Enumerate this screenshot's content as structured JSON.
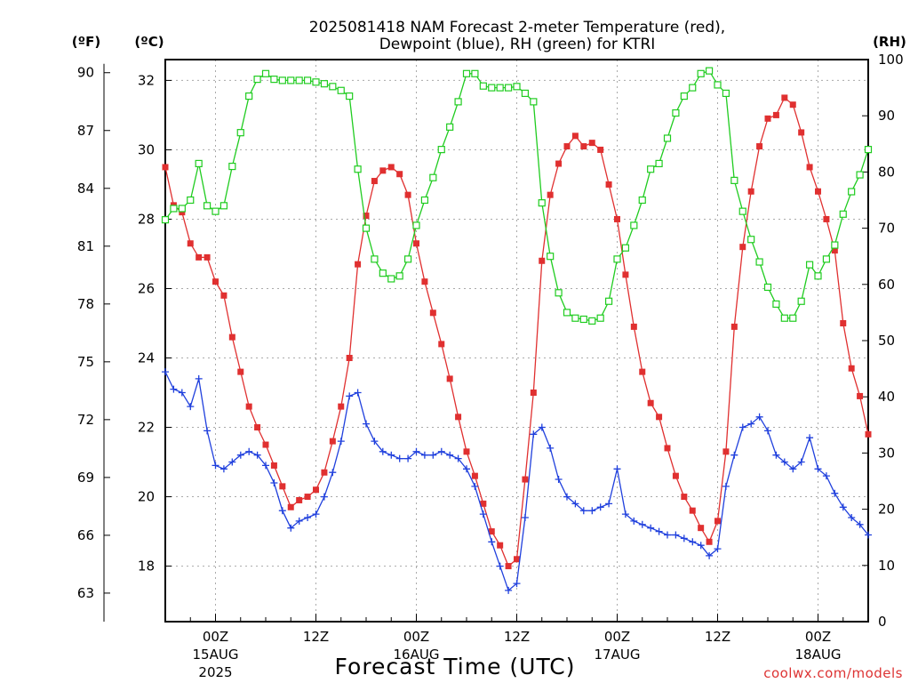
{
  "chart_data": {
    "type": "line",
    "title_line1": "2025081418 NAM Forecast 2-meter Temperature (red),",
    "title_line2": "Dewpoint (blue), RH (green) for KTRI",
    "xlabel": "Forecast Time (UTC)",
    "credit": "coolwx.com/models",
    "x_unit": "forecast hour",
    "x_range": [
      0,
      84
    ],
    "x_ticks": [
      {
        "x": 6,
        "label": "00Z",
        "sub1": "15AUG",
        "sub2": "2025"
      },
      {
        "x": 18,
        "label": "12Z",
        "sub1": "",
        "sub2": ""
      },
      {
        "x": 30,
        "label": "00Z",
        "sub1": "16AUG",
        "sub2": ""
      },
      {
        "x": 42,
        "label": "12Z",
        "sub1": "",
        "sub2": ""
      },
      {
        "x": 54,
        "label": "00Z",
        "sub1": "17AUG",
        "sub2": ""
      },
      {
        "x": 66,
        "label": "12Z",
        "sub1": "",
        "sub2": ""
      },
      {
        "x": 78,
        "label": "00Z",
        "sub1": "18AUG",
        "sub2": ""
      }
    ],
    "axes": {
      "celsius": {
        "label": "(ºC)",
        "range": [
          16.4,
          32.6
        ],
        "ticks": [
          "18",
          "20",
          "22",
          "24",
          "26",
          "28",
          "30",
          "32"
        ]
      },
      "fahrenheit": {
        "label": "(ºF)",
        "ticks": [
          "63",
          "66",
          "69",
          "72",
          "75",
          "78",
          "81",
          "84",
          "87",
          "90"
        ]
      },
      "rh": {
        "label": "(RH)",
        "range": [
          0,
          100
        ],
        "ticks": [
          "0",
          "10",
          "20",
          "30",
          "40",
          "50",
          "60",
          "70",
          "80",
          "90",
          "100"
        ]
      }
    },
    "grid": true,
    "series": [
      {
        "name": "Temperature (red)",
        "color": "#e03030",
        "marker": "filled-square",
        "axis": "celsius",
        "values": [
          29.5,
          28.4,
          28.2,
          27.3,
          26.9,
          26.9,
          26.2,
          25.8,
          24.6,
          23.6,
          22.6,
          22.0,
          21.5,
          20.9,
          20.3,
          19.7,
          19.9,
          20.0,
          20.2,
          20.7,
          21.6,
          22.6,
          24.0,
          26.7,
          28.1,
          29.1,
          29.4,
          29.5,
          29.3,
          28.7,
          27.3,
          26.2,
          25.3,
          24.4,
          23.4,
          22.3,
          21.3,
          20.6,
          19.8,
          19.0,
          18.6,
          18.0,
          18.2,
          20.5,
          23.0,
          26.8,
          28.7,
          29.6,
          30.1,
          30.4,
          30.1,
          30.2,
          30.0,
          29.0,
          28.0,
          26.4,
          24.9,
          23.6,
          22.7,
          22.3,
          21.4,
          20.6,
          20.0,
          19.6,
          19.1,
          18.7,
          19.3,
          21.3,
          24.9,
          27.2,
          28.8,
          30.1,
          30.9,
          31.0,
          31.5,
          31.3,
          30.5,
          29.5,
          28.8,
          28.0,
          27.1,
          25.0,
          23.7,
          22.9,
          21.8
        ]
      },
      {
        "name": "Dewpoint (blue)",
        "color": "#2040dd",
        "marker": "plus",
        "axis": "celsius",
        "values": [
          23.6,
          23.1,
          23.0,
          22.6,
          23.4,
          21.9,
          20.9,
          20.8,
          21.0,
          21.2,
          21.3,
          21.2,
          20.9,
          20.4,
          19.6,
          19.1,
          19.3,
          19.4,
          19.5,
          20.0,
          20.7,
          21.6,
          22.9,
          23.0,
          22.1,
          21.6,
          21.3,
          21.2,
          21.1,
          21.1,
          21.3,
          21.2,
          21.2,
          21.3,
          21.2,
          21.1,
          20.8,
          20.3,
          19.5,
          18.7,
          18.0,
          17.3,
          17.5,
          19.4,
          21.8,
          22.0,
          21.4,
          20.5,
          20.0,
          19.8,
          19.6,
          19.6,
          19.7,
          19.8,
          20.8,
          19.5,
          19.3,
          19.2,
          19.1,
          19.0,
          18.9,
          18.9,
          18.8,
          18.7,
          18.6,
          18.3,
          18.5,
          20.3,
          21.2,
          22.0,
          22.1,
          22.3,
          21.9,
          21.2,
          21.0,
          20.8,
          21.0,
          21.7,
          20.8,
          20.6,
          20.1,
          19.7,
          19.4,
          19.2,
          18.9
        ]
      },
      {
        "name": "RH (green)",
        "color": "#20cc20",
        "marker": "open-square",
        "axis": "rh",
        "values": [
          71.5,
          73.5,
          73.5,
          75.0,
          81.5,
          74.0,
          73.0,
          74.0,
          81.0,
          87.0,
          93.5,
          96.5,
          97.5,
          96.5,
          96.3,
          96.3,
          96.3,
          96.3,
          96.0,
          95.7,
          95.2,
          94.5,
          93.5,
          80.5,
          70.0,
          64.5,
          62.0,
          61.0,
          61.5,
          64.5,
          70.5,
          75.0,
          79.0,
          84.0,
          88.0,
          92.5,
          97.5,
          97.5,
          95.3,
          95.0,
          95.0,
          95.0,
          95.2,
          94.0,
          92.5,
          74.5,
          65.0,
          58.5,
          55.0,
          54.0,
          53.8,
          53.5,
          54.0,
          57.0,
          64.5,
          66.5,
          70.5,
          75.0,
          80.5,
          81.5,
          86.0,
          90.5,
          93.5,
          95.0,
          97.5,
          98.0,
          95.5,
          94.0,
          78.5,
          73.0,
          68.0,
          64.0,
          59.5,
          56.5,
          54.0,
          54.0,
          57.0,
          63.5,
          61.5,
          64.5,
          67.0,
          72.5,
          76.5,
          79.5,
          84.0
        ]
      }
    ]
  }
}
